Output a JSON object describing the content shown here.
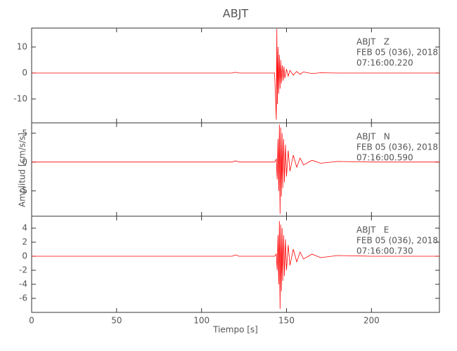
{
  "figure": {
    "title": "ABJT",
    "xlabel": "Tiempo [s]",
    "ylabel": "Amplitud [cm/s/s]"
  },
  "chart_data": [
    {
      "type": "line",
      "x": [
        0,
        20,
        40,
        60,
        80,
        100,
        118,
        120,
        122,
        140,
        143,
        144,
        144.3,
        144.6,
        145,
        145.4,
        145.8,
        146.2,
        146.6,
        147,
        147.5,
        148,
        148.5,
        149,
        150,
        151,
        152,
        154,
        156,
        158,
        160,
        165,
        170,
        180,
        200,
        220,
        240
      ],
      "series": [
        {
          "color": "#ff0000",
          "values": [
            0,
            0,
            0,
            0,
            0,
            0,
            0,
            0.3,
            0,
            0,
            0,
            -18,
            17,
            -12,
            10,
            -8,
            7,
            -6,
            5,
            -4,
            3,
            -3,
            2.5,
            -2,
            1.5,
            -1.2,
            1,
            -0.8,
            0.6,
            -0.5,
            0.4,
            -0.2,
            0.1,
            0,
            0,
            0,
            0
          ]
        }
      ],
      "xlim": [
        0,
        240
      ],
      "xticks": [
        0,
        50,
        100,
        150,
        200
      ],
      "ylim": [
        -19.2,
        17.3
      ],
      "yticks": [
        10,
        0,
        -10
      ],
      "annotations": [
        "ABJT   Z",
        "FEB 05 (036), 2018",
        "07:16:00.220"
      ]
    },
    {
      "type": "line",
      "x": [
        0,
        20,
        40,
        60,
        80,
        100,
        118,
        120,
        122,
        140,
        143,
        144,
        144.5,
        145,
        145.4,
        145.8,
        146.2,
        146.6,
        147,
        147.4,
        147.8,
        148.3,
        148.8,
        149.4,
        150,
        151,
        152,
        154,
        156,
        158,
        160,
        165,
        170,
        180,
        200,
        220,
        240
      ],
      "series": [
        {
          "color": "#ff0000",
          "values": [
            0,
            0,
            0,
            0,
            0,
            0,
            0,
            0.2,
            0,
            0,
            0,
            0.5,
            -3,
            4,
            -5,
            6.5,
            -9,
            6,
            -6,
            5,
            -4.5,
            4,
            -3.5,
            3,
            -2.5,
            2,
            -1.6,
            1.2,
            -0.9,
            0.7,
            -0.5,
            0.3,
            -0.2,
            0.1,
            0,
            0,
            0
          ]
        }
      ],
      "xlim": [
        0,
        240
      ],
      "xticks": [
        0,
        50,
        100,
        150,
        200
      ],
      "ylim": [
        -9.4,
        6.8
      ],
      "yticks": [
        5,
        0,
        -5
      ],
      "annotations": [
        "ABJT   N",
        "FEB 05 (036), 2018",
        "07:16:00.590"
      ]
    },
    {
      "type": "line",
      "x": [
        0,
        20,
        40,
        60,
        80,
        100,
        118,
        120,
        122,
        140,
        143,
        144,
        144.5,
        145,
        145.4,
        145.8,
        146.2,
        146.6,
        147,
        147.4,
        147.8,
        148.3,
        148.8,
        149.4,
        150,
        151,
        152,
        154,
        156,
        158,
        160,
        165,
        170,
        180,
        200,
        220,
        240
      ],
      "series": [
        {
          "color": "#ff0000",
          "values": [
            0,
            0,
            0,
            0,
            0,
            0,
            0,
            0.2,
            0,
            0,
            0,
            0.3,
            -2,
            3,
            -4,
            5,
            -7.5,
            4.5,
            -5,
            4,
            -3.5,
            3,
            -2.8,
            2.4,
            -2,
            1.6,
            -1.3,
            1,
            -0.8,
            0.6,
            -0.4,
            0.3,
            -0.2,
            0.1,
            0,
            0,
            0
          ]
        }
      ],
      "xlim": [
        0,
        240
      ],
      "xticks": [
        0,
        50,
        100,
        150,
        200
      ],
      "ylim": [
        -8,
        5.7
      ],
      "yticks": [
        4,
        2,
        0,
        -2,
        -4,
        -6
      ],
      "annotations": [
        "ABJT   E",
        "FEB 05 (036), 2018",
        "07:16:00.730"
      ]
    }
  ]
}
